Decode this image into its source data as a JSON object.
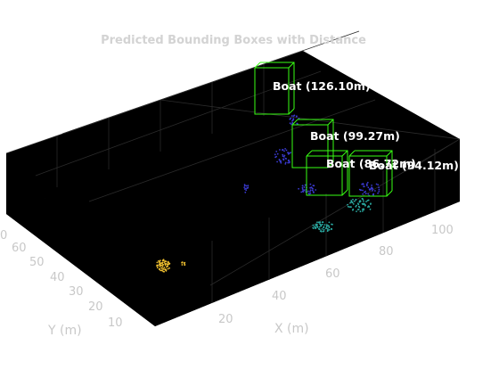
{
  "chart_data": {
    "type": "scatter3d",
    "title": "Predicted Bounding Boxes with Distance",
    "xlabel": "X (m)",
    "ylabel": "Y (m)",
    "x_ticks": [
      "20",
      "40",
      "60",
      "80",
      "100"
    ],
    "y_ticks": [
      "10",
      "20",
      "30",
      "40",
      "50",
      "60",
      "0"
    ],
    "background": "#000000",
    "grid": true,
    "colors": {
      "box": "#39ff14",
      "near_points": "#f2c230",
      "mid_points": "#2aa8a0",
      "far_points": "#3a3ad0"
    },
    "boxes": [
      {
        "label": "Boat (126.10m)",
        "distance": 126.1
      },
      {
        "label": "Boat (99.27m)",
        "distance": 99.27
      },
      {
        "label": "Boat (86.72m)",
        "distance": 86.72
      },
      {
        "label": "Boat (94.12m)",
        "distance": 94.12
      }
    ]
  }
}
